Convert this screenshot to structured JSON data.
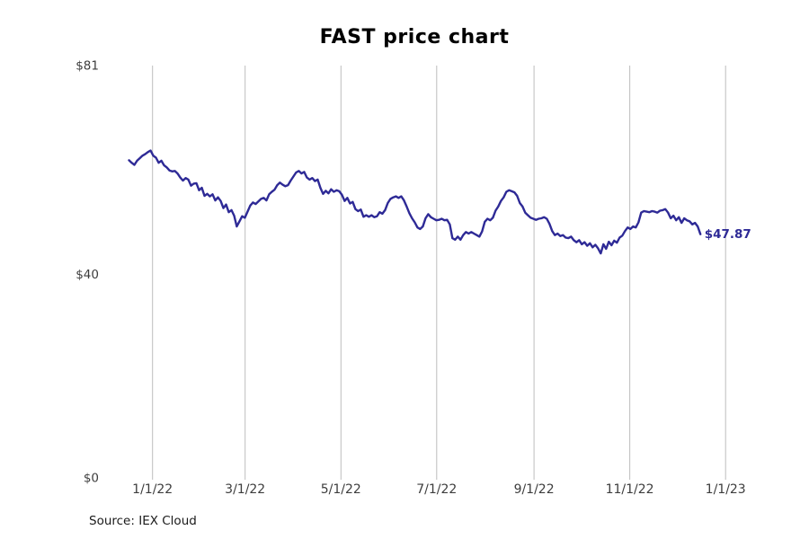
{
  "title": "FAST price chart",
  "source_note": "Source: IEX Cloud",
  "colors": {
    "line": "#2e2a96",
    "grid": "#bdbdbd",
    "tick_label": "#3d3d3d",
    "title": "#000000",
    "background": "#ffffff"
  },
  "chart_data": {
    "type": "line",
    "title": "FAST price chart",
    "xlabel": "",
    "ylabel": "",
    "legend_position": "none",
    "grid": "vertical-only",
    "ylim": [
      0,
      81
    ],
    "y_ticks": [
      {
        "label": "$0",
        "value": 0
      },
      {
        "label": "$40",
        "value": 40
      },
      {
        "label": "$81",
        "value": 81
      }
    ],
    "x_tick_labels": [
      "1/1/22",
      "3/1/22",
      "5/1/22",
      "7/1/22",
      "9/1/22",
      "11/1/22",
      "1/1/23"
    ],
    "x_tick_days": [
      15,
      74,
      135,
      196,
      258,
      319,
      380
    ],
    "series": [
      {
        "name": "FAST",
        "color": "#2e2a96",
        "end_label": "$47.87",
        "last_price": 47.87,
        "day_start": 0,
        "day_step": 1.717,
        "prices": [
          62.4,
          61.9,
          61.5,
          62.3,
          62.8,
          63.3,
          63.6,
          64.0,
          64.3,
          63.3,
          62.9,
          61.9,
          62.3,
          61.4,
          61.0,
          60.4,
          60.2,
          60.3,
          59.8,
          59.0,
          58.4,
          58.9,
          58.6,
          57.4,
          57.8,
          57.9,
          56.5,
          57.0,
          55.4,
          55.8,
          55.3,
          55.7,
          54.5,
          55.1,
          54.4,
          53.0,
          53.7,
          52.2,
          52.6,
          51.5,
          49.4,
          50.4,
          51.4,
          51.1,
          52.3,
          53.5,
          54.1,
          53.8,
          54.3,
          54.8,
          55.0,
          54.5,
          55.7,
          56.2,
          56.6,
          57.5,
          58.0,
          57.6,
          57.3,
          57.5,
          58.4,
          59.2,
          60.0,
          60.3,
          59.8,
          60.1,
          59.0,
          58.6,
          58.9,
          58.3,
          58.6,
          57.0,
          55.8,
          56.4,
          55.9,
          56.7,
          56.2,
          56.5,
          56.3,
          55.6,
          54.4,
          55.0,
          53.9,
          54.2,
          52.8,
          52.4,
          52.7,
          51.3,
          51.6,
          51.3,
          51.6,
          51.2,
          51.4,
          52.2,
          51.9,
          52.6,
          54.0,
          54.8,
          55.1,
          55.3,
          55.0,
          55.3,
          54.5,
          53.3,
          52.0,
          51.0,
          50.2,
          49.2,
          48.9,
          49.4,
          51.0,
          51.8,
          51.2,
          50.9,
          50.6,
          50.7,
          50.9,
          50.6,
          50.7,
          49.8,
          47.1,
          46.8,
          47.4,
          46.8,
          47.7,
          48.3,
          48.0,
          48.3,
          48.0,
          47.7,
          47.4,
          48.4,
          50.3,
          50.9,
          50.6,
          51.1,
          52.5,
          53.3,
          54.4,
          55.1,
          56.2,
          56.5,
          56.3,
          56.1,
          55.4,
          54.0,
          53.3,
          52.1,
          51.6,
          51.1,
          50.9,
          50.7,
          50.9,
          51.0,
          51.2,
          50.9,
          49.9,
          48.5,
          47.7,
          48.0,
          47.5,
          47.7,
          47.2,
          47.1,
          47.4,
          46.7,
          46.3,
          46.7,
          45.9,
          46.3,
          45.6,
          46.1,
          45.3,
          45.8,
          45.1,
          44.1,
          45.9,
          45.0,
          46.4,
          45.7,
          46.6,
          46.2,
          47.2,
          47.6,
          48.5,
          49.2,
          48.9,
          49.4,
          49.2,
          50.2,
          52.1,
          52.4,
          52.3,
          52.2,
          52.4,
          52.3,
          52.1,
          52.5,
          52.6,
          52.8,
          52.1,
          51.0,
          51.5,
          50.6,
          51.2,
          50.1,
          51.0,
          50.6,
          50.4,
          49.8,
          50.1,
          49.4,
          47.87
        ]
      }
    ]
  }
}
